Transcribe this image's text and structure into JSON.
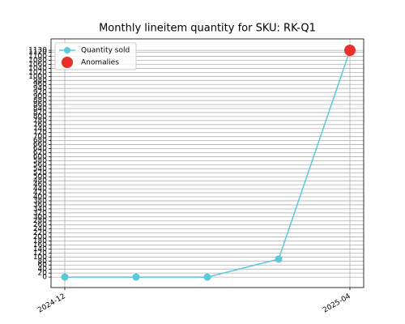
{
  "chart_data": {
    "type": "line",
    "title": "Monthly lineitem quantity for SKU: RK-Q1",
    "categories": [
      "2024-12",
      null,
      null,
      null,
      "2025-04"
    ],
    "series": [
      {
        "name": "Quantity sold",
        "color": "#5bc8dc",
        "values": [
          0,
          0,
          0,
          90,
          1130
        ]
      },
      {
        "name": "Anomalies",
        "color": "#e8302a",
        "values": [
          null,
          null,
          null,
          null,
          1130
        ]
      }
    ],
    "ylim": [
      -52,
      1187
    ],
    "yticks": [
      0,
      20,
      40,
      60,
      80,
      100,
      120,
      140,
      160,
      180,
      200,
      220,
      240,
      260,
      280,
      300,
      320,
      340,
      360,
      380,
      400,
      420,
      440,
      460,
      480,
      500,
      520,
      540,
      560,
      580,
      600,
      620,
      640,
      660,
      680,
      700,
      720,
      740,
      760,
      780,
      800,
      820,
      840,
      860,
      880,
      900,
      920,
      940,
      960,
      980,
      1000,
      1020,
      1040,
      1060,
      1080,
      1100,
      1120,
      1130
    ],
    "grid": true,
    "legend": "upper-left"
  }
}
